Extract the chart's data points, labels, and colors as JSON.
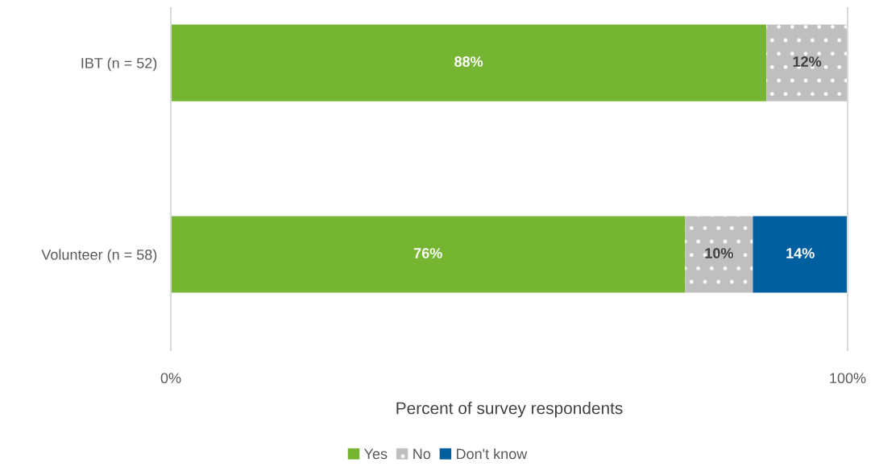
{
  "chart_data": {
    "type": "bar",
    "orientation": "horizontal",
    "stacked": true,
    "categories": [
      "IBT (n = 52)",
      "Volunteer (n = 58)"
    ],
    "series": [
      {
        "name": "Yes",
        "color": "#76b532",
        "values": [
          88,
          76
        ],
        "value_labels": [
          "88%",
          "76%"
        ]
      },
      {
        "name": "No",
        "color": "#bfbfbf",
        "values": [
          12,
          10
        ],
        "value_labels": [
          "12%",
          "10%"
        ]
      },
      {
        "name": "Don't know",
        "color": "#005f9e",
        "values": [
          null,
          14
        ],
        "value_labels": [
          null,
          "14%"
        ]
      }
    ],
    "xlim": [
      0,
      100
    ],
    "xticks": [
      {
        "value": 0,
        "label": "0%"
      },
      {
        "value": 100,
        "label": "100%"
      }
    ],
    "xlabel": "Percent of survey respondents",
    "legend": "bottom"
  }
}
